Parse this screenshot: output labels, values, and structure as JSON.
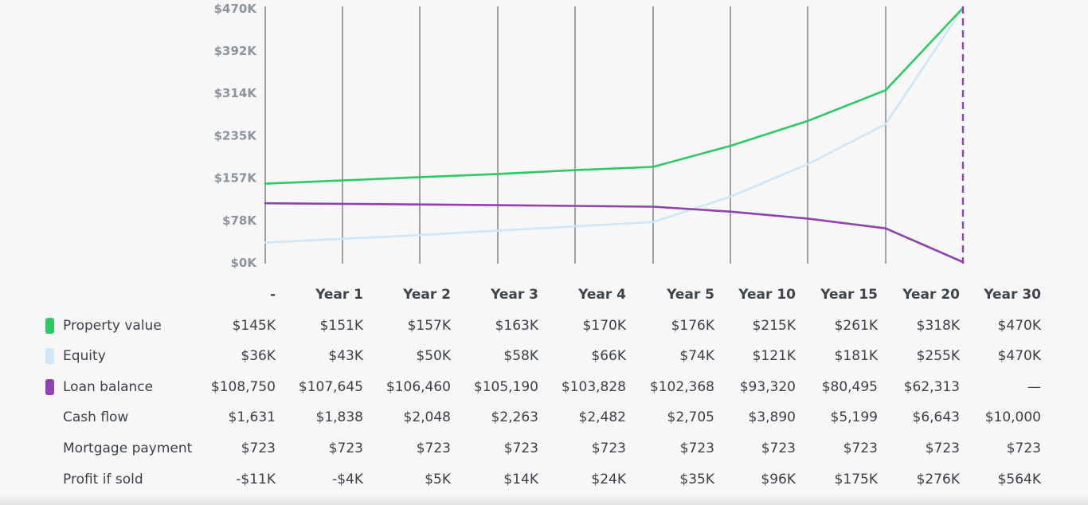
{
  "chart_data": {
    "type": "line",
    "y_tick_labels": [
      "$470K",
      "$392K",
      "$314K",
      "$235K",
      "$157K",
      "$78K",
      "$0K"
    ],
    "y_tick_values": [
      470,
      392,
      314,
      235,
      157,
      78,
      0
    ],
    "ylim": [
      0,
      470
    ],
    "unit": "thousands USD",
    "categories": [
      "-",
      "Year 1",
      "Year 2",
      "Year 3",
      "Year 4",
      "Year 5",
      "Year 10",
      "Year 15",
      "Year 20",
      "Year 30"
    ],
    "grid": "vertical lines",
    "series": [
      {
        "name": "Property value",
        "color": "#2ec866",
        "values": [
          145,
          151,
          157,
          163,
          170,
          176,
          215,
          261,
          318,
          470
        ]
      },
      {
        "name": "Equity",
        "color": "#cfe6f7",
        "values": [
          36,
          43,
          50,
          58,
          66,
          74,
          121,
          181,
          255,
          470
        ]
      },
      {
        "name": "Loan balance",
        "color": "#8e44ad",
        "values": [
          108.75,
          107.645,
          106.46,
          105.19,
          103.828,
          102.368,
          93.32,
          80.495,
          62.313,
          0
        ]
      }
    ],
    "highlight_category": "Year 30",
    "highlight_color": "#8e44ad"
  },
  "table": {
    "headers": [
      "-",
      "Year 1",
      "Year 2",
      "Year 3",
      "Year 4",
      "Year 5",
      "Year 10",
      "Year 15",
      "Year 20",
      "Year 30"
    ],
    "rows": [
      {
        "label": "Property value",
        "swatch": "#2ec866",
        "cells": [
          "$145K",
          "$151K",
          "$157K",
          "$163K",
          "$170K",
          "$176K",
          "$215K",
          "$261K",
          "$318K",
          "$470K"
        ]
      },
      {
        "label": "Equity",
        "swatch": "#cfe6f7",
        "cells": [
          "$36K",
          "$43K",
          "$50K",
          "$58K",
          "$66K",
          "$74K",
          "$121K",
          "$181K",
          "$255K",
          "$470K"
        ]
      },
      {
        "label": "Loan balance",
        "swatch": "#8e44ad",
        "cells": [
          "$108,750",
          "$107,645",
          "$106,460",
          "$105,190",
          "$103,828",
          "$102,368",
          "$93,320",
          "$80,495",
          "$62,313",
          "—"
        ]
      },
      {
        "label": "Cash flow",
        "swatch": "",
        "cells": [
          "$1,631",
          "$1,838",
          "$2,048",
          "$2,263",
          "$2,482",
          "$2,705",
          "$3,890",
          "$5,199",
          "$6,643",
          "$10,000"
        ]
      },
      {
        "label": "Mortgage payment",
        "swatch": "",
        "cells": [
          "$723",
          "$723",
          "$723",
          "$723",
          "$723",
          "$723",
          "$723",
          "$723",
          "$723",
          "$723"
        ]
      },
      {
        "label": "Profit if sold",
        "swatch": "",
        "cells": [
          "-$11K",
          "-$4K",
          "$5K",
          "$14K",
          "$24K",
          "$35K",
          "$96K",
          "$175K",
          "$276K",
          "$564K"
        ]
      }
    ]
  }
}
